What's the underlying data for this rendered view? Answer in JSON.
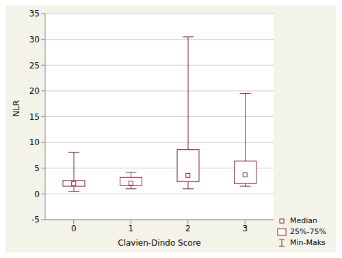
{
  "chart_data": {
    "type": "box",
    "xlabel": "Clavien-Dindo Score",
    "ylabel": "NLR",
    "categories": [
      "0",
      "1",
      "2",
      "3"
    ],
    "min": [
      0.5,
      1.0,
      1.0,
      1.5
    ],
    "q1": [
      1.5,
      1.6,
      2.4,
      2.0
    ],
    "median": [
      2.0,
      2.1,
      3.6,
      3.7
    ],
    "q3": [
      2.6,
      3.2,
      8.6,
      6.4
    ],
    "max": [
      8.1,
      4.2,
      30.5,
      19.5
    ],
    "legend_labels": {
      "median": "Median",
      "box": "25%-75%",
      "whiskers": "Min-Maks"
    },
    "color": "#7a2030",
    "ylim": [
      -5,
      35
    ],
    "yticks": [
      -5,
      0,
      5,
      10,
      15,
      20,
      25,
      30,
      35
    ],
    "grid": true,
    "legend": "right"
  }
}
